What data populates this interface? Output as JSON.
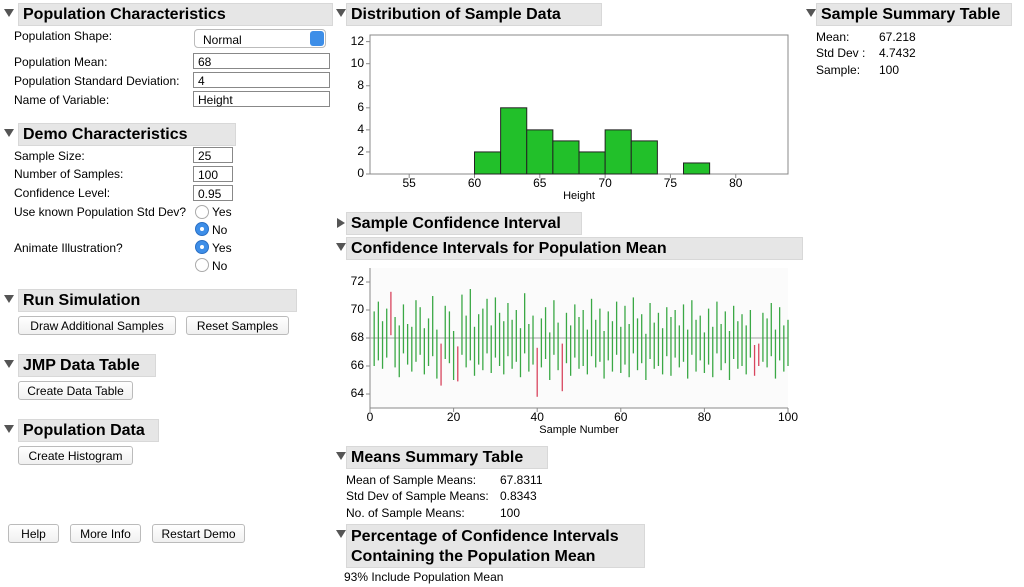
{
  "population": {
    "title": "Population Characteristics",
    "fields": [
      {
        "label": "Population Shape:",
        "value": "Normal"
      },
      {
        "label": "Population Mean:",
        "value": "68"
      },
      {
        "label": "Population Standard Deviation:",
        "value": "4"
      },
      {
        "label": "Name of Variable:",
        "value": "Height"
      }
    ]
  },
  "demo": {
    "title": "Demo Characteristics",
    "fields": [
      {
        "label": "Sample Size:",
        "value": "25"
      },
      {
        "label": "Number of Samples:",
        "value": "100"
      },
      {
        "label": "Confidence Level:",
        "value": "0.95"
      }
    ],
    "known_sd": {
      "label": "Use known Population Std Dev?",
      "options": [
        "Yes",
        "No"
      ]
    },
    "animate": {
      "label": "Animate Illustration?",
      "options": [
        "Yes",
        "No"
      ]
    }
  },
  "run": {
    "title": "Run Simulation",
    "buttons": [
      "Draw Additional Samples",
      "Reset Samples"
    ]
  },
  "jmp": {
    "title": "JMP Data Table",
    "buttons": [
      "Create Data Table"
    ]
  },
  "popdata": {
    "title": "Population Data",
    "buttons": [
      "Create Histogram"
    ]
  },
  "footer_buttons": [
    "Help",
    "More Info",
    "Restart Demo"
  ],
  "sample_ci": {
    "title": "Sample Confidence Interval"
  },
  "sample_summary": {
    "title": "Sample Summary Table",
    "rows": [
      [
        "Mean:",
        "67.218"
      ],
      [
        "Std Dev :",
        "4.7432"
      ],
      [
        "Sample:",
        "100"
      ]
    ]
  },
  "means_summary": {
    "title": "Means Summary Table",
    "rows": [
      [
        "Mean of Sample Means:",
        "67.8311"
      ],
      [
        "Std Dev of Sample Means:",
        "0.8343"
      ],
      [
        "No. of Sample Means:",
        "100"
      ]
    ]
  },
  "percentage": {
    "title_lines": [
      "Percentage of Confidence Intervals",
      "Containing the Population Mean"
    ],
    "text": "93% Include Population Mean"
  },
  "chart_data": [
    {
      "type": "histogram",
      "title": "Distribution of Sample Data",
      "x_label": "Height",
      "bins": [
        60,
        62,
        64,
        66,
        68,
        70,
        72,
        74,
        76,
        78
      ],
      "counts": [
        2,
        6,
        4,
        3,
        2,
        4,
        3,
        0,
        1
      ],
      "color": "#22c02a",
      "xlim": [
        52,
        84
      ],
      "xticks": [
        55,
        60,
        65,
        70,
        75,
        80
      ],
      "ylim": [
        0,
        12.6
      ],
      "yticks": [
        0,
        2,
        4,
        6,
        8,
        10,
        12
      ]
    },
    {
      "type": "interval",
      "title": "Confidence Intervals for Population Mean",
      "x_label": "Sample Number",
      "x": [
        1,
        2,
        3,
        4,
        5,
        6,
        7,
        8,
        9,
        10,
        11,
        12,
        13,
        14,
        15,
        16,
        17,
        18,
        19,
        20,
        21,
        22,
        23,
        24,
        25,
        26,
        27,
        28,
        29,
        30,
        31,
        32,
        33,
        34,
        35,
        36,
        37,
        38,
        39,
        40,
        41,
        42,
        43,
        44,
        45,
        46,
        47,
        48,
        49,
        50,
        51,
        52,
        53,
        54,
        55,
        56,
        57,
        58,
        59,
        60,
        61,
        62,
        63,
        64,
        65,
        66,
        67,
        68,
        69,
        70,
        71,
        72,
        73,
        74,
        75,
        76,
        77,
        78,
        79,
        80,
        81,
        82,
        83,
        84,
        85,
        86,
        87,
        88,
        89,
        90,
        91,
        92,
        93,
        94,
        95,
        96,
        97,
        98,
        99,
        100
      ],
      "lower": [
        66.0,
        66.4,
        65.8,
        66.6,
        68.2,
        65.9,
        65.2,
        66.9,
        66.1,
        65.6,
        66.3,
        66.8,
        65.4,
        66.0,
        66.7,
        65.1,
        64.6,
        66.5,
        66.2,
        65.0,
        64.9,
        66.8,
        65.9,
        66.4,
        65.3,
        66.1,
        65.7,
        66.9,
        65.5,
        66.6,
        66.0,
        65.4,
        66.7,
        65.8,
        66.3,
        65.2,
        66.9,
        65.6,
        66.1,
        63.8,
        65.9,
        66.5,
        65.0,
        66.8,
        65.7,
        64.2,
        66.2,
        65.3,
        66.6,
        65.8,
        66.0,
        65.4,
        66.7,
        65.9,
        66.3,
        65.1,
        66.4,
        65.6,
        66.8,
        65.5,
        66.1,
        65.2,
        66.9,
        65.7,
        66.2,
        65.0,
        66.5,
        65.8,
        66.0,
        65.4,
        66.7,
        65.3,
        66.6,
        65.9,
        66.3,
        65.1,
        66.8,
        65.6,
        66.4,
        65.5,
        66.1,
        65.2,
        66.9,
        65.7,
        66.2,
        65.0,
        66.5,
        65.8,
        66.0,
        65.4,
        66.6,
        65.3,
        66.0,
        66.3,
        65.9,
        66.7,
        65.1,
        66.4,
        65.6,
        66.0
      ],
      "upper": [
        69.9,
        70.6,
        69.2,
        70.1,
        71.3,
        69.5,
        68.9,
        70.4,
        69.0,
        68.8,
        70.7,
        70.2,
        68.7,
        69.4,
        71.0,
        68.6,
        67.6,
        70.3,
        69.9,
        68.5,
        67.4,
        71.1,
        69.6,
        71.5,
        68.8,
        69.7,
        70.1,
        70.8,
        68.9,
        70.9,
        69.8,
        69.2,
        70.5,
        69.3,
        70.0,
        68.7,
        71.2,
        69.0,
        69.6,
        67.3,
        69.4,
        70.2,
        68.4,
        70.7,
        69.1,
        67.6,
        69.8,
        68.9,
        70.4,
        69.5,
        70.0,
        68.6,
        70.8,
        69.3,
        70.1,
        68.5,
        69.9,
        69.2,
        70.6,
        68.8,
        70.3,
        69.0,
        70.9,
        69.4,
        69.7,
        68.3,
        70.5,
        69.1,
        69.8,
        68.7,
        70.2,
        69.5,
        70.0,
        68.9,
        70.4,
        68.6,
        70.7,
        69.3,
        69.6,
        68.4,
        70.1,
        68.8,
        70.6,
        69.0,
        69.9,
        68.5,
        70.3,
        69.2,
        69.7,
        68.9,
        70.0,
        67.5,
        67.6,
        69.8,
        69.4,
        70.5,
        68.6,
        70.2,
        68.9,
        69.3
      ],
      "ref_line": 68,
      "color": "#3aa845",
      "miss_color": "#d8455e",
      "ref_color": "#a0a0a0",
      "xlim": [
        0,
        100
      ],
      "xticks": [
        0,
        20,
        40,
        60,
        80,
        100
      ],
      "ylim": [
        63,
        73
      ],
      "yticks": [
        64,
        66,
        68,
        70,
        72
      ]
    }
  ]
}
